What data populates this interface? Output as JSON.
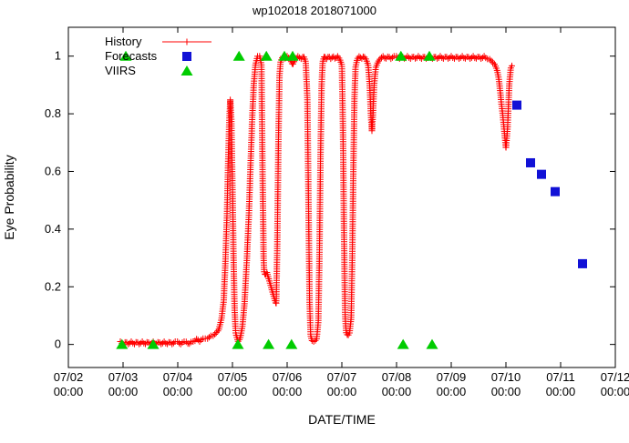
{
  "chart_data": {
    "type": "line",
    "title": "wp102018 2018071000",
    "xlabel": "DATE/TIME",
    "ylabel": "Eye Probability",
    "legend": {
      "position": "top-left",
      "entries": [
        "History",
        "Forecasts",
        "VIIRS"
      ]
    },
    "axes": {
      "xlim_days": [
        0,
        10
      ],
      "ylim": [
        -0.08,
        1.1
      ],
      "x_ticks": [
        {
          "day": 0,
          "date": "07/02",
          "time": "00:00"
        },
        {
          "day": 1,
          "date": "07/03",
          "time": "00:00"
        },
        {
          "day": 2,
          "date": "07/04",
          "time": "00:00"
        },
        {
          "day": 3,
          "date": "07/05",
          "time": "00:00"
        },
        {
          "day": 4,
          "date": "07/06",
          "time": "00:00"
        },
        {
          "day": 5,
          "date": "07/07",
          "time": "00:00"
        },
        {
          "day": 6,
          "date": "07/08",
          "time": "00:00"
        },
        {
          "day": 7,
          "date": "07/09",
          "time": "00:00"
        },
        {
          "day": 8,
          "date": "07/10",
          "time": "00:00"
        },
        {
          "day": 9,
          "date": "07/11",
          "time": "00:00"
        },
        {
          "day": 10,
          "date": "07/12",
          "time": "00:00"
        }
      ],
      "y_ticks": [
        {
          "value": 0,
          "label": "0"
        },
        {
          "value": 0.2,
          "label": "0.2"
        },
        {
          "value": 0.4,
          "label": "0.4"
        },
        {
          "value": 0.6,
          "label": "0.6"
        },
        {
          "value": 0.8,
          "label": "0.8"
        },
        {
          "value": 1,
          "label": "1"
        }
      ]
    },
    "series": [
      {
        "name": "History",
        "style": "linespoints",
        "marker": "plus",
        "color": "#ff0000",
        "points": [
          [
            0.95,
            0.01
          ],
          [
            1.0,
            0.0
          ],
          [
            1.05,
            0.01
          ],
          [
            1.1,
            0.0
          ],
          [
            1.15,
            0.01
          ],
          [
            1.2,
            0.0
          ],
          [
            1.25,
            0.01
          ],
          [
            1.3,
            0.0
          ],
          [
            1.35,
            0.01
          ],
          [
            1.4,
            0.0
          ],
          [
            1.45,
            0.01
          ],
          [
            1.5,
            0.0
          ],
          [
            1.55,
            0.01
          ],
          [
            1.6,
            0.0
          ],
          [
            1.65,
            0.01
          ],
          [
            1.7,
            0.0
          ],
          [
            1.75,
            0.01
          ],
          [
            1.8,
            0.0
          ],
          [
            1.85,
            0.01
          ],
          [
            1.9,
            0.0
          ],
          [
            1.95,
            0.01
          ],
          [
            2.0,
            0.01
          ],
          [
            2.05,
            0.0
          ],
          [
            2.1,
            0.01
          ],
          [
            2.15,
            0.01
          ],
          [
            2.2,
            0.0
          ],
          [
            2.25,
            0.01
          ],
          [
            2.3,
            0.01
          ],
          [
            2.35,
            0.02
          ],
          [
            2.4,
            0.01
          ],
          [
            2.45,
            0.02
          ],
          [
            2.5,
            0.02
          ],
          [
            2.55,
            0.02
          ],
          [
            2.6,
            0.03
          ],
          [
            2.65,
            0.03
          ],
          [
            2.7,
            0.04
          ],
          [
            2.75,
            0.05
          ],
          [
            2.8,
            0.09
          ],
          [
            2.84,
            0.15
          ],
          [
            2.87,
            0.28
          ],
          [
            2.9,
            0.45
          ],
          [
            2.92,
            0.62
          ],
          [
            2.94,
            0.76
          ],
          [
            2.96,
            0.85
          ],
          [
            2.98,
            0.78
          ],
          [
            3.0,
            0.55
          ],
          [
            3.02,
            0.3
          ],
          [
            3.04,
            0.12
          ],
          [
            3.06,
            0.04
          ],
          [
            3.1,
            0.01
          ],
          [
            3.14,
            0.02
          ],
          [
            3.18,
            0.06
          ],
          [
            3.22,
            0.14
          ],
          [
            3.26,
            0.28
          ],
          [
            3.3,
            0.45
          ],
          [
            3.33,
            0.62
          ],
          [
            3.36,
            0.78
          ],
          [
            3.39,
            0.9
          ],
          [
            3.42,
            0.97
          ],
          [
            3.46,
            1.0
          ],
          [
            3.5,
            1.0
          ],
          [
            3.53,
            0.97
          ],
          [
            3.55,
            0.6
          ],
          [
            3.57,
            0.3
          ],
          [
            3.58,
            0.25
          ],
          [
            3.6,
            0.24
          ],
          [
            3.63,
            0.25
          ],
          [
            3.66,
            0.23
          ],
          [
            3.69,
            0.21
          ],
          [
            3.72,
            0.19
          ],
          [
            3.75,
            0.17
          ],
          [
            3.78,
            0.15
          ],
          [
            3.8,
            0.14
          ],
          [
            3.82,
            0.35
          ],
          [
            3.84,
            0.7
          ],
          [
            3.86,
            0.93
          ],
          [
            3.88,
            0.98
          ],
          [
            3.92,
            1.0
          ],
          [
            3.96,
            0.99
          ],
          [
            4.0,
            1.0
          ],
          [
            4.05,
            0.99
          ],
          [
            4.1,
            0.97
          ],
          [
            4.15,
            0.99
          ],
          [
            4.2,
            1.0
          ],
          [
            4.25,
            0.99
          ],
          [
            4.3,
            1.0
          ],
          [
            4.34,
            0.98
          ],
          [
            4.37,
            0.85
          ],
          [
            4.39,
            0.5
          ],
          [
            4.41,
            0.15
          ],
          [
            4.43,
            0.03
          ],
          [
            4.46,
            0.01
          ],
          [
            4.5,
            0.01
          ],
          [
            4.54,
            0.02
          ],
          [
            4.57,
            0.08
          ],
          [
            4.59,
            0.3
          ],
          [
            4.61,
            0.65
          ],
          [
            4.63,
            0.9
          ],
          [
            4.65,
            0.98
          ],
          [
            4.68,
            1.0
          ],
          [
            4.72,
            0.99
          ],
          [
            4.76,
            1.0
          ],
          [
            4.8,
            0.99
          ],
          [
            4.84,
            1.0
          ],
          [
            4.88,
            0.99
          ],
          [
            4.92,
            1.0
          ],
          [
            4.96,
            0.99
          ],
          [
            5.0,
            0.97
          ],
          [
            5.02,
            0.75
          ],
          [
            5.04,
            0.38
          ],
          [
            5.06,
            0.1
          ],
          [
            5.08,
            0.04
          ],
          [
            5.11,
            0.03
          ],
          [
            5.14,
            0.04
          ],
          [
            5.17,
            0.09
          ],
          [
            5.19,
            0.3
          ],
          [
            5.21,
            0.6
          ],
          [
            5.23,
            0.85
          ],
          [
            5.25,
            0.96
          ],
          [
            5.28,
            0.99
          ],
          [
            5.32,
            1.0
          ],
          [
            5.36,
            0.99
          ],
          [
            5.4,
            1.0
          ],
          [
            5.44,
            0.99
          ],
          [
            5.48,
            0.97
          ],
          [
            5.51,
            0.9
          ],
          [
            5.53,
            0.8
          ],
          [
            5.55,
            0.74
          ],
          [
            5.57,
            0.8
          ],
          [
            5.59,
            0.9
          ],
          [
            5.62,
            0.96
          ],
          [
            5.66,
            0.98
          ],
          [
            5.7,
            0.99
          ],
          [
            5.75,
            1.0
          ],
          [
            5.8,
            0.99
          ],
          [
            5.85,
            1.0
          ],
          [
            5.9,
            0.99
          ],
          [
            5.95,
            1.0
          ],
          [
            6.0,
            1.0
          ],
          [
            6.05,
            0.99
          ],
          [
            6.1,
            1.0
          ],
          [
            6.15,
            0.99
          ],
          [
            6.2,
            1.0
          ],
          [
            6.25,
            0.99
          ],
          [
            6.3,
            1.0
          ],
          [
            6.35,
            0.99
          ],
          [
            6.4,
            1.0
          ],
          [
            6.45,
            0.99
          ],
          [
            6.5,
            1.0
          ],
          [
            6.55,
            0.99
          ],
          [
            6.6,
            1.0
          ],
          [
            6.65,
            0.99
          ],
          [
            6.7,
            1.0
          ],
          [
            6.75,
            0.99
          ],
          [
            6.8,
            1.0
          ],
          [
            6.85,
            0.99
          ],
          [
            6.9,
            1.0
          ],
          [
            6.95,
            0.99
          ],
          [
            7.0,
            1.0
          ],
          [
            7.05,
            0.99
          ],
          [
            7.1,
            1.0
          ],
          [
            7.15,
            0.99
          ],
          [
            7.2,
            1.0
          ],
          [
            7.25,
            0.99
          ],
          [
            7.3,
            1.0
          ],
          [
            7.35,
            0.99
          ],
          [
            7.4,
            1.0
          ],
          [
            7.45,
            0.99
          ],
          [
            7.5,
            1.0
          ],
          [
            7.55,
            0.99
          ],
          [
            7.6,
            1.0
          ],
          [
            7.65,
            0.99
          ],
          [
            7.7,
            0.99
          ],
          [
            7.75,
            0.98
          ],
          [
            7.8,
            0.97
          ],
          [
            7.84,
            0.95
          ],
          [
            7.87,
            0.92
          ],
          [
            7.9,
            0.87
          ],
          [
            7.92,
            0.83
          ],
          [
            7.94,
            0.8
          ],
          [
            7.96,
            0.76
          ],
          [
            7.98,
            0.72
          ],
          [
            8.0,
            0.68
          ],
          [
            8.03,
            0.75
          ],
          [
            8.06,
            0.9
          ],
          [
            8.09,
            0.96
          ],
          [
            8.12,
            0.97
          ]
        ]
      },
      {
        "name": "Forecasts",
        "style": "points",
        "marker": "square",
        "color": "#1111d6",
        "points": [
          [
            8.2,
            0.83
          ],
          [
            8.45,
            0.63
          ],
          [
            8.65,
            0.59
          ],
          [
            8.9,
            0.53
          ],
          [
            9.4,
            0.28
          ]
        ]
      },
      {
        "name": "VIIRS",
        "style": "points",
        "marker": "triangle",
        "color": "#00cc00",
        "points": [
          [
            1.05,
            1
          ],
          [
            0.98,
            0
          ],
          [
            1.55,
            0
          ],
          [
            3.12,
            1
          ],
          [
            3.1,
            0
          ],
          [
            3.62,
            1
          ],
          [
            3.66,
            0
          ],
          [
            3.95,
            1
          ],
          [
            4.1,
            1
          ],
          [
            4.08,
            0
          ],
          [
            6.08,
            1
          ],
          [
            6.12,
            0
          ],
          [
            6.6,
            1
          ],
          [
            6.65,
            0
          ]
        ]
      }
    ]
  }
}
